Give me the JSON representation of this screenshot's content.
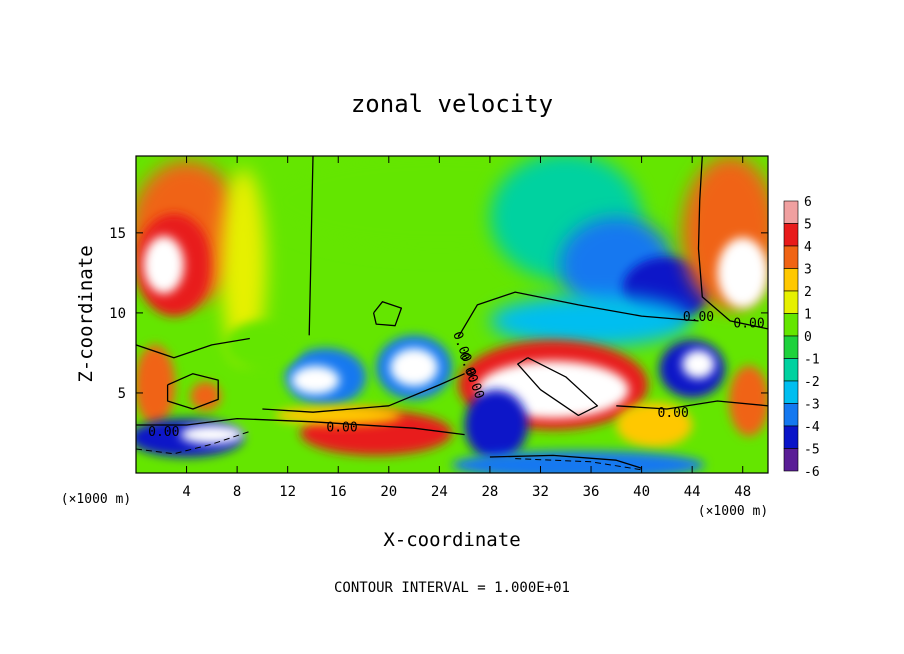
{
  "chart_data": {
    "type": "heatmap",
    "title": "zonal velocity",
    "xlabel": "X-coordinate",
    "ylabel": "Z-coordinate",
    "x_unit": "(×1000 m)",
    "xlim": [
      0,
      50
    ],
    "ylim": [
      0,
      19.8
    ],
    "x_ticks": [
      "4",
      "8",
      "12",
      "16",
      "20",
      "24",
      "28",
      "32",
      "36",
      "40",
      "44",
      "48"
    ],
    "y_ticks": [
      "5",
      "10",
      "15"
    ],
    "colorbar": {
      "ticks": [
        "6",
        "5",
        "4",
        "3",
        "2",
        "1",
        "0",
        "-1",
        "-2",
        "-3",
        "-4",
        "-5",
        "-6"
      ],
      "range": [
        -6,
        6
      ],
      "colors": [
        "#f0a0a0",
        "#e81a1a",
        "#f06414",
        "#ffc800",
        "#e6f000",
        "#64e600",
        "#1ed23c",
        "#00d2a0",
        "#00bef0",
        "#1478f0",
        "#0a14c8",
        "#5a1e96"
      ]
    },
    "contour_labels": [
      "0.00",
      "0.00",
      "0.00",
      "0.00",
      "0.00",
      "0.00",
      "0.00",
      "0.00"
    ],
    "footer": "CONTOUR INTERVAL = 1.000E+01"
  }
}
